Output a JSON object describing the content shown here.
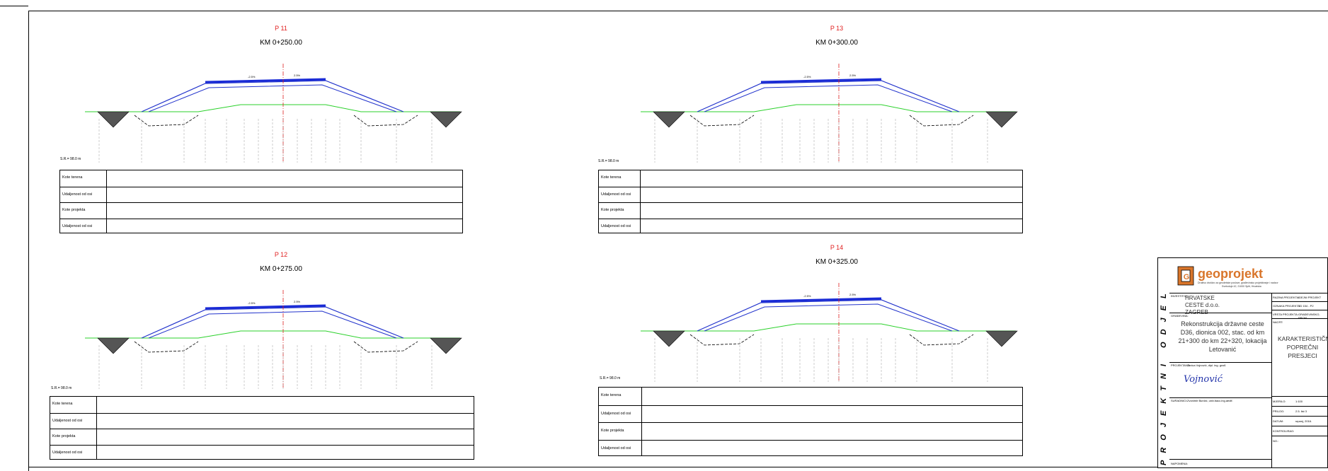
{
  "sections": [
    {
      "id": "P 11",
      "km": "KM 0+250.00",
      "sr": "S.R.= 98.0 m"
    },
    {
      "id": "P 13",
      "km": "KM 0+300.00",
      "sr": "S.R.= 98.0 m"
    },
    {
      "id": "P 12",
      "km": "KM 0+275.00",
      "sr": "S.R.= 98.0 m"
    },
    {
      "id": "P 14",
      "km": "KM 0+325.00",
      "sr": "S.R.= 98.0 m"
    }
  ],
  "table_rows": [
    "Kote terena",
    "Udaljenost od osi",
    "Kote projekta",
    "Udaljenost od osi"
  ],
  "slopes": {
    "left": "-2.5%",
    "right": "2.5%"
  },
  "title_block": {
    "company": "geoprojekt",
    "company_sub": "Društvo društvo za geodetske poslove, građevinsko projektiranje i nadzor",
    "company_addr": "Svetoduje 42, 21000 Split, Hrvatska",
    "side_text": "PROJEKTNI ODJEL",
    "investor_label": "INVESTITOR:",
    "investor": "HRVATSKE CESTE d.o.o. ZAGREB",
    "building_label": "GRAĐEVINA:",
    "building": "Rekonstrukcija državne ceste D36, dionica 002, stac. od km 21+300 do km 22+320, lokacija Letovanić",
    "designer_label": "PROJEKTANT:",
    "designer": "Janica Vojnović, dipl. ing. građ.",
    "signature": "Vojnović",
    "collab_label": "SURADNICI:",
    "collab": "Zvonimir Bunčić, univ.bacc.ing.aedif.",
    "notes_label": "NAPOMENA:",
    "project_type_label": "RAZINA PROJEKTA:",
    "project_type": "IDEJNI PROJEKT",
    "mark_label": "OZNAKA PROJEKTA:",
    "mark": "TD 154 - P2",
    "part_label": "VRSTA PROJEKTA:",
    "part": "GRAĐEVINSKO-PROM.",
    "drawing_label": "NACRT:",
    "drawing": "KARAKTERISTIČNI POPREČNI PRESJECI",
    "scale_label": "MJERILO:",
    "scale": "1:100",
    "sheet_label": "PRILOG:",
    "sheet": "2.5. list 3",
    "date_label": "DATUM:",
    "date": "srpanj, 2016.",
    "control_label": "KONTROLIRAO:",
    "no_label": "NO.:"
  }
}
